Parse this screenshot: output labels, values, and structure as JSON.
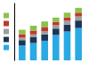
{
  "chart_data": {
    "type": "bar",
    "stacked": true,
    "categories": [
      null,
      null,
      null,
      null,
      null,
      null
    ],
    "series": [
      {
        "color": "#29aae2",
        "values": [
          1.3,
          1.5,
          1.7,
          2.2,
          2.5,
          2.8
        ]
      },
      {
        "color": "#1c3557",
        "values": [
          0.45,
          0.5,
          0.55,
          0.55,
          0.6,
          0.65
        ]
      },
      {
        "color": "#9e9e9e",
        "values": [
          0.22,
          0.25,
          0.28,
          0.3,
          0.33,
          0.36
        ]
      },
      {
        "color": "#c0392b",
        "values": [
          0.3,
          0.33,
          0.36,
          0.28,
          0.3,
          0.32
        ]
      },
      {
        "color": "#8bc34a",
        "values": [
          0.38,
          0.42,
          0.48,
          0.38,
          0.4,
          0.42
        ]
      }
    ],
    "ylim": [
      0,
      5.0
    ],
    "tick_labels": false,
    "legend": "left"
  }
}
